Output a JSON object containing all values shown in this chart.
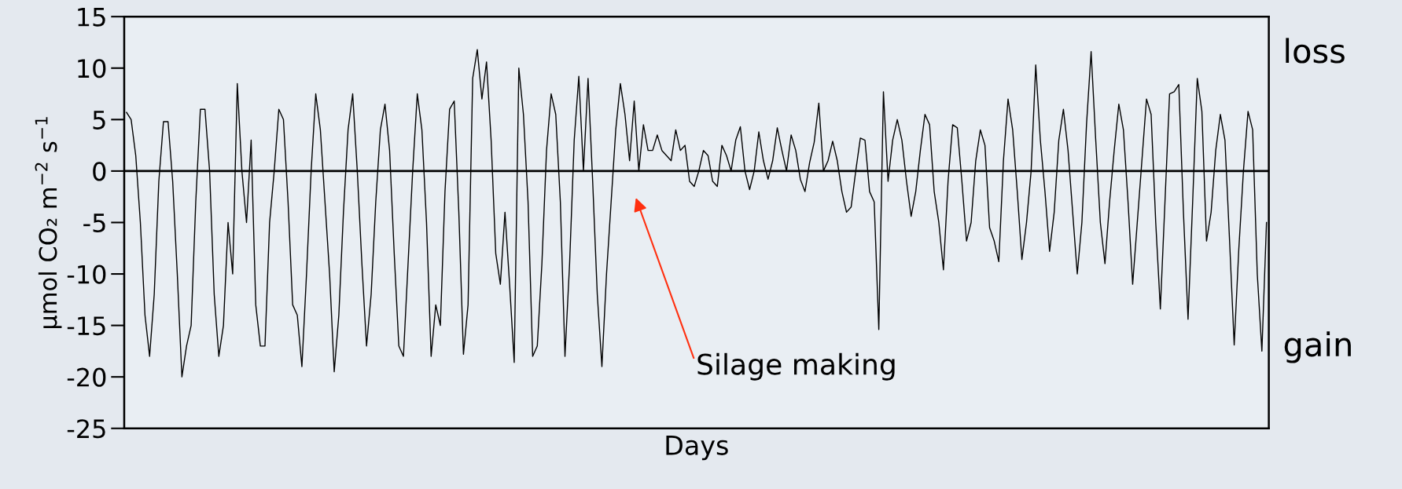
{
  "chart_data": {
    "type": "line",
    "xlabel": "Days",
    "ylabel": "μmol CO₂ m$^{−2}$ s$^{−1}$",
    "ylim": [
      -25,
      15
    ],
    "yticks": [
      -25,
      -20,
      -15,
      -10,
      -5,
      0,
      5,
      10,
      15
    ],
    "tick_labels": "y",
    "grid": false,
    "legend": false,
    "marker": "none",
    "line_style": "solid",
    "ref_lines": [
      {
        "axis": "y",
        "value": 0,
        "color": "#000000"
      }
    ],
    "annotations": [
      "Silage making",
      "loss",
      "gain"
    ],
    "categories": [
      null,
      null,
      null,
      null,
      null,
      null,
      null,
      null,
      null,
      null,
      null,
      null,
      null,
      null,
      null,
      null,
      null,
      null,
      null,
      null,
      null,
      null,
      null,
      null,
      null,
      null,
      null,
      null,
      null,
      null,
      null,
      null,
      null,
      null,
      null,
      null,
      null,
      null,
      null,
      null,
      null,
      null,
      null,
      null,
      null,
      null,
      null,
      null,
      null,
      null,
      null,
      null,
      null,
      null,
      null,
      null,
      null,
      null,
      null,
      null,
      null,
      null,
      null,
      null,
      null,
      null,
      null,
      null,
      null,
      null,
      null,
      null,
      null,
      null,
      null,
      null,
      null,
      null,
      null,
      null,
      null,
      null,
      null,
      null,
      null,
      null,
      null,
      null,
      null,
      null,
      null,
      null,
      null,
      null,
      null,
      null,
      null,
      null,
      null,
      null,
      null,
      null,
      null,
      null,
      null,
      null,
      null,
      null,
      null,
      null,
      null,
      null,
      null,
      null,
      null,
      null,
      null,
      null,
      null,
      null,
      null,
      null,
      null,
      null,
      null,
      null,
      null,
      null,
      null,
      null,
      null,
      null,
      null,
      null,
      null,
      null,
      null,
      null,
      null,
      null,
      null,
      null,
      null,
      null,
      null,
      null,
      null,
      null,
      null,
      null,
      null,
      null,
      null,
      null,
      null,
      null,
      null,
      null,
      null,
      null,
      null,
      null,
      null,
      null,
      null,
      null,
      null,
      null,
      null,
      null,
      null,
      null,
      null,
      null,
      null,
      null,
      null,
      null,
      null,
      null,
      null,
      null,
      null,
      null,
      null,
      null,
      null,
      null,
      null,
      null,
      null,
      null,
      null,
      null,
      null,
      null,
      null,
      null,
      null,
      null,
      null,
      null,
      null,
      null,
      null,
      null,
      null,
      null,
      null,
      null,
      null,
      null,
      null,
      null,
      null,
      null,
      null,
      null,
      null,
      null,
      null,
      null,
      null,
      null,
      null,
      null,
      null,
      null,
      null,
      null,
      null,
      null,
      null,
      null,
      null,
      null,
      null,
      null,
      null,
      null,
      null,
      null,
      null,
      null,
      null,
      null,
      null,
      null
    ],
    "series": [
      {
        "color": "#000000",
        "values": [
          5.7,
          5,
          1.5,
          -5,
          -14,
          -18,
          -12,
          -1,
          4.8,
          4.8,
          -1,
          -10,
          -20,
          -17,
          -15,
          -3,
          6,
          6,
          0,
          -12,
          -18,
          -15,
          -5,
          -10,
          8.5,
          0,
          -5,
          3,
          -13,
          -17,
          -17,
          -5,
          0,
          6,
          5,
          -3,
          -13,
          -14,
          -19,
          -10,
          0,
          7.5,
          4,
          -3,
          -10,
          -19.5,
          -14,
          -4,
          4,
          7.5,
          0,
          -9,
          -17,
          -12,
          -3,
          4,
          6.5,
          2,
          -8,
          -17,
          -18,
          -9,
          0,
          7.5,
          4,
          -5,
          -18,
          -13,
          -15,
          -2,
          6,
          6.8,
          -4,
          -17.8,
          -13,
          9,
          11.8,
          7,
          10.6,
          3,
          -8,
          -11,
          -4,
          -11,
          -18.6,
          10,
          5.5,
          -3,
          -18,
          -17,
          -9,
          2,
          7.5,
          5.5,
          -3,
          -18,
          -9,
          3,
          9.2,
          0,
          9,
          -1,
          -12,
          -19,
          -10,
          -3,
          4,
          8.5,
          5.5,
          1,
          6.8,
          0,
          4.5,
          2,
          2,
          3.5,
          2,
          1.5,
          1,
          4,
          2,
          2.5,
          -1,
          -1.5,
          0,
          2,
          1.5,
          -1,
          -1.5,
          2.5,
          1.5,
          0,
          3,
          4.3,
          0,
          -1.8,
          0,
          3.8,
          1,
          -0.8,
          1,
          4.2,
          2,
          0,
          3.5,
          2,
          -0.8,
          -2,
          0.8,
          2.8,
          6.6,
          0,
          1,
          2.9,
          1,
          -2,
          -4,
          -3.5,
          0,
          3.2,
          3,
          -2,
          -3,
          -15.4,
          7.7,
          -1,
          3,
          5,
          3,
          -1,
          -4.4,
          -2,
          2,
          5.5,
          4.5,
          -2,
          -5,
          -9.6,
          -1,
          4.5,
          4.2,
          -1,
          -6.8,
          -5,
          1,
          4,
          2.5,
          -5.5,
          -6.8,
          -8.8,
          1,
          7,
          4,
          -2,
          -8.6,
          -5,
          0,
          10.3,
          3,
          -2,
          -7.8,
          -4,
          3,
          6,
          2,
          -4,
          -10,
          -5,
          4.5,
          11.6,
          3,
          -5,
          -9,
          -3,
          2,
          6.5,
          4,
          -3,
          -11,
          -5,
          1,
          7,
          5.5,
          -5,
          -13.4,
          -3,
          7.5,
          7.7,
          8.4,
          -4,
          -14.4,
          -3,
          9,
          5.8,
          -6.8,
          -4,
          2,
          5.5,
          3,
          -6.8,
          -16.9,
          -7.6,
          0,
          5.8,
          4,
          -10,
          -17.5,
          -5
        ]
      }
    ]
  }
}
